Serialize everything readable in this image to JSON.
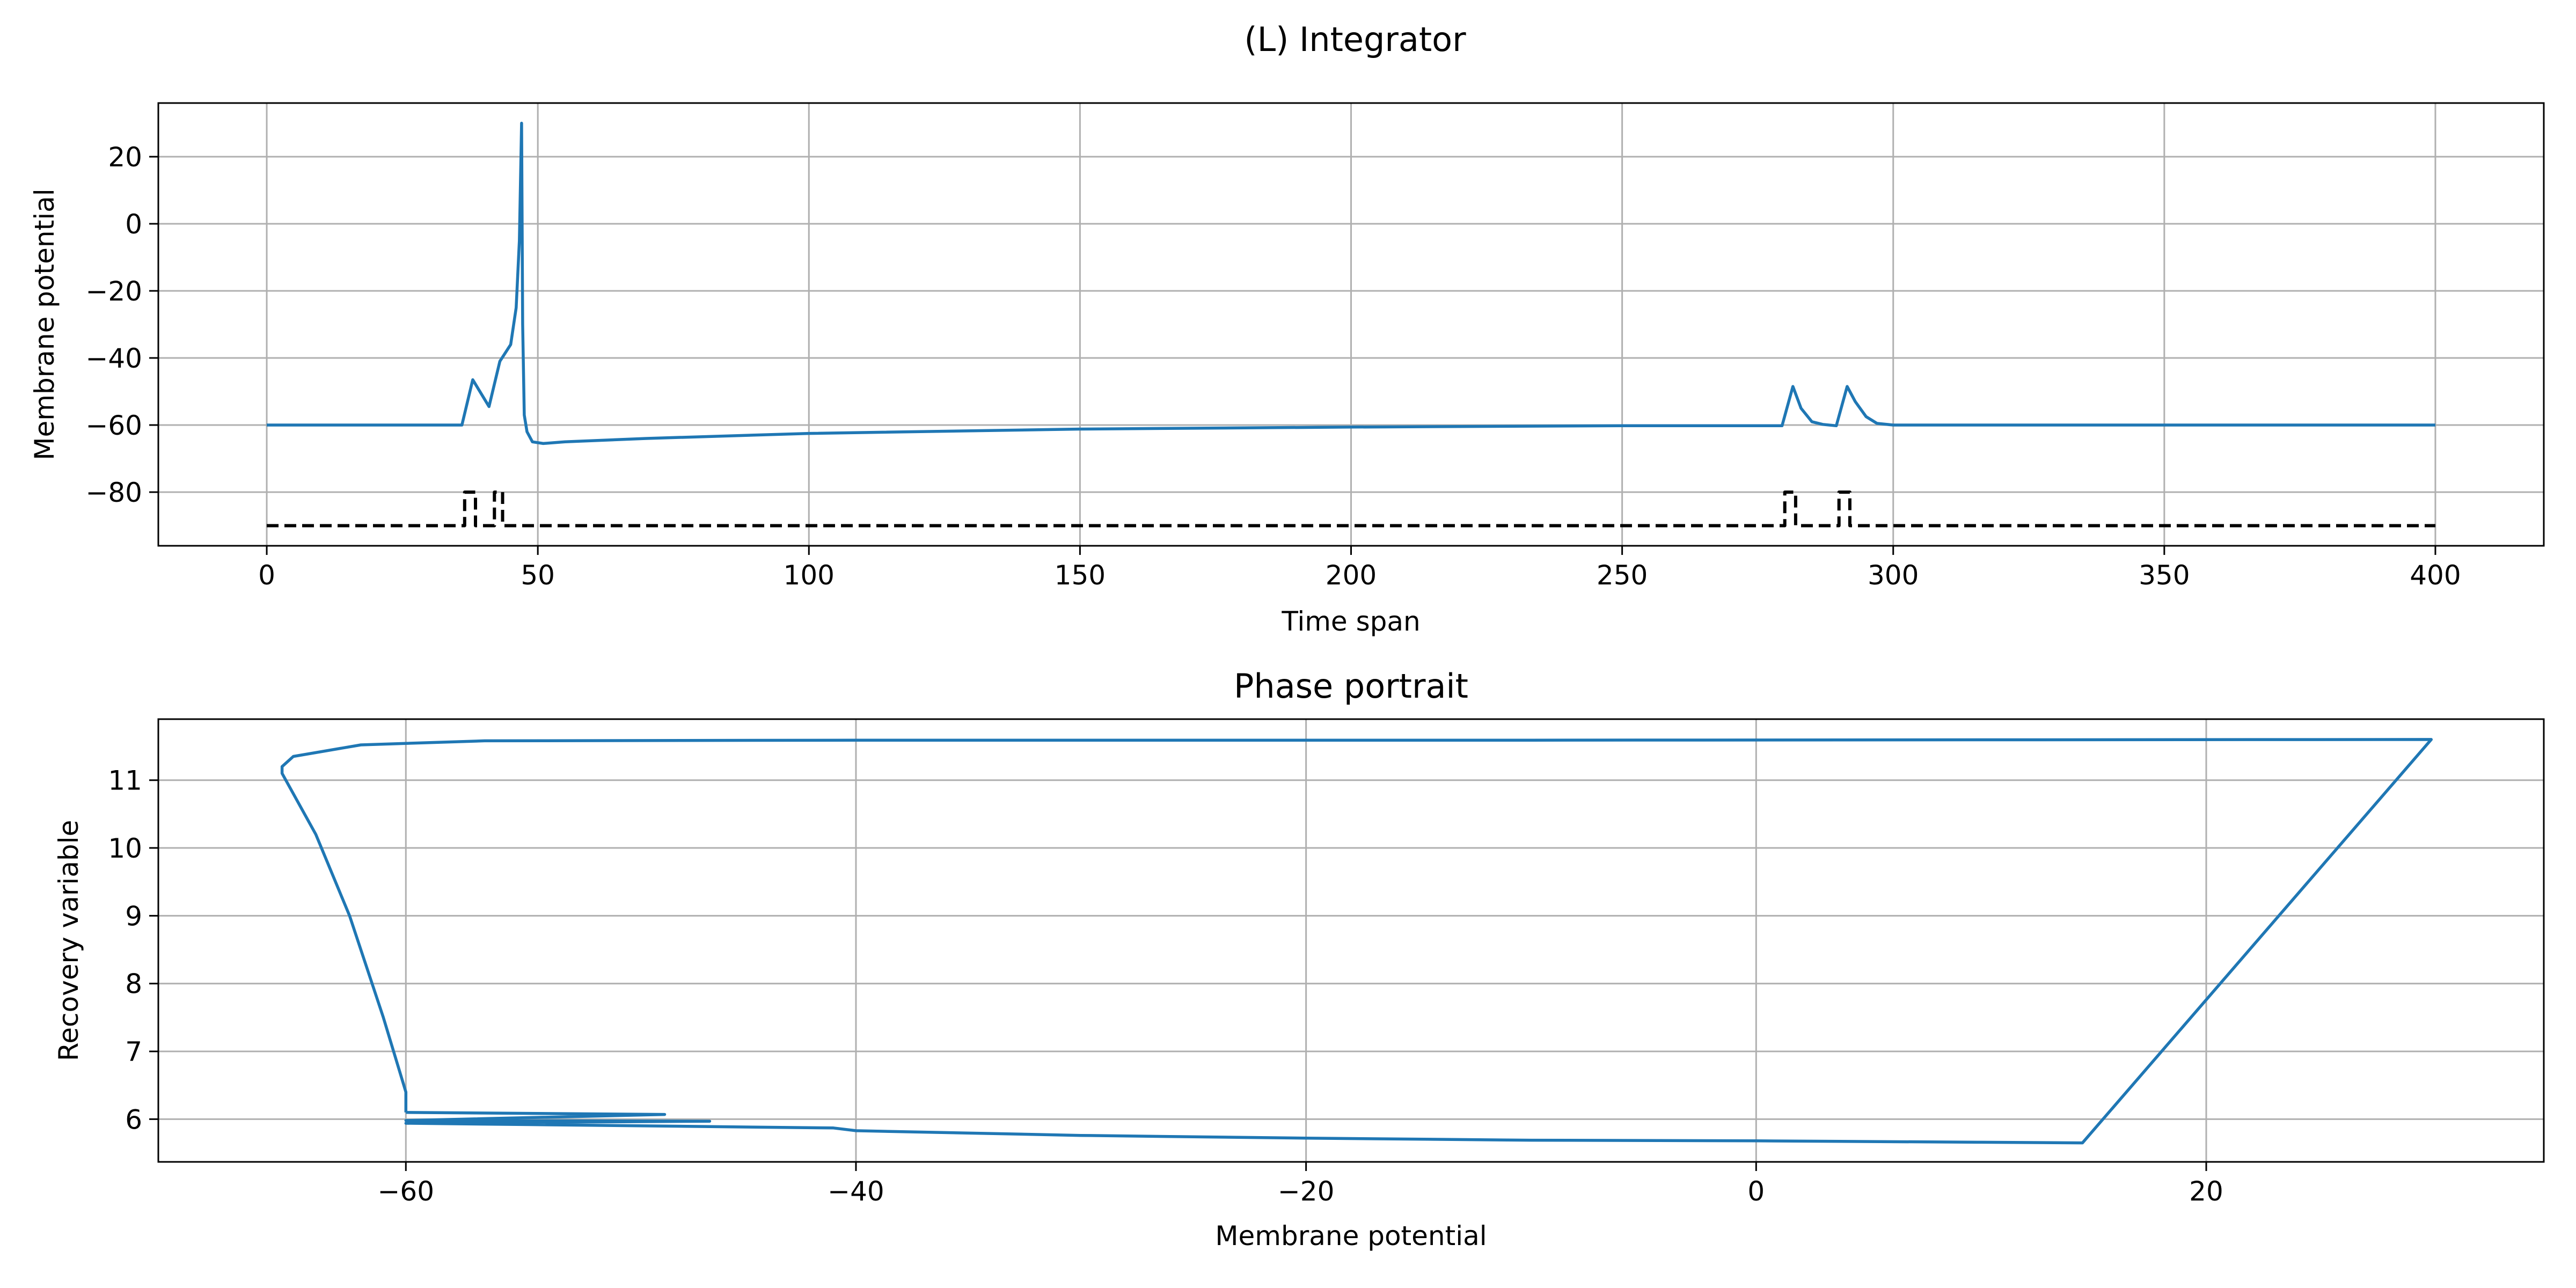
{
  "figure": {
    "suptitle": "(L) Integrator"
  },
  "chart_data": [
    {
      "type": "line",
      "title": "",
      "xlabel": "Time span",
      "ylabel": "Membrane potential",
      "xlim": [
        -20,
        420
      ],
      "ylim": [
        -96,
        36
      ],
      "xticks": [
        0,
        50,
        100,
        150,
        200,
        250,
        300,
        350,
        400
      ],
      "yticks": [
        -80,
        -60,
        -40,
        -20,
        0,
        20
      ],
      "grid": true,
      "colors": {
        "series": "#1f77b4",
        "input": "#000000"
      },
      "series": [
        {
          "style": "solid",
          "x": [
            0,
            36,
            38,
            41,
            43,
            45,
            46,
            46.6,
            47,
            47.2,
            47.5,
            48,
            49,
            51,
            55,
            70,
            100,
            150,
            200,
            250,
            279.5,
            281.5,
            283,
            285,
            287,
            289.5,
            291.5,
            293,
            295,
            297,
            300,
            350,
            400
          ],
          "y": [
            -60,
            -60,
            -46.5,
            -54.5,
            -41,
            -36,
            -25,
            -5,
            30,
            -30,
            -57,
            -62,
            -65,
            -65.5,
            -65,
            -64,
            -62.5,
            -61.2,
            -60.6,
            -60.2,
            -60.2,
            -48.5,
            -55,
            -59,
            -59.8,
            -60.2,
            -48.5,
            -53,
            -57.5,
            -59.5,
            -60,
            -60,
            -60
          ]
        },
        {
          "style": "dashed",
          "x": [
            0,
            36.5,
            36.5,
            38.5,
            38.5,
            42,
            42,
            43.5,
            43.5,
            280,
            280,
            282,
            282,
            290,
            290,
            292,
            292,
            400
          ],
          "y": [
            -90,
            -90,
            -80,
            -80,
            -90,
            -90,
            -80,
            -80,
            -90,
            -90,
            -80,
            -80,
            -90,
            -90,
            -80,
            -80,
            -90,
            -90
          ]
        }
      ]
    },
    {
      "type": "line",
      "title": "Phase portrait",
      "xlabel": "Membrane potential",
      "ylabel": "Recovery variable",
      "xlim": [
        -71,
        35
      ],
      "ylim": [
        5.37,
        11.9
      ],
      "xticks": [
        -60,
        -40,
        -20,
        0,
        20
      ],
      "yticks": [
        6,
        7,
        8,
        9,
        10,
        11
      ],
      "grid": true,
      "colors": {
        "series": "#1f77b4"
      },
      "series": [
        {
          "style": "solid",
          "x": [
            -60,
            -48.5,
            -60,
            -46.5,
            -60,
            -54.5,
            -41,
            -40,
            -30,
            -20,
            -10,
            0,
            10,
            14.5,
            30,
            -10,
            -40,
            -56.5,
            -62,
            -65,
            -65.5,
            -65.5,
            -64,
            -62.5,
            -61,
            -60,
            -60
          ],
          "y": [
            6.1,
            6.07,
            5.98,
            5.97,
            5.94,
            5.92,
            5.87,
            5.83,
            5.76,
            5.72,
            5.69,
            5.68,
            5.66,
            5.65,
            11.6,
            11.59,
            11.59,
            11.58,
            11.52,
            11.35,
            11.2,
            11.1,
            10.2,
            9.0,
            7.5,
            6.4,
            6.1
          ]
        }
      ]
    }
  ]
}
